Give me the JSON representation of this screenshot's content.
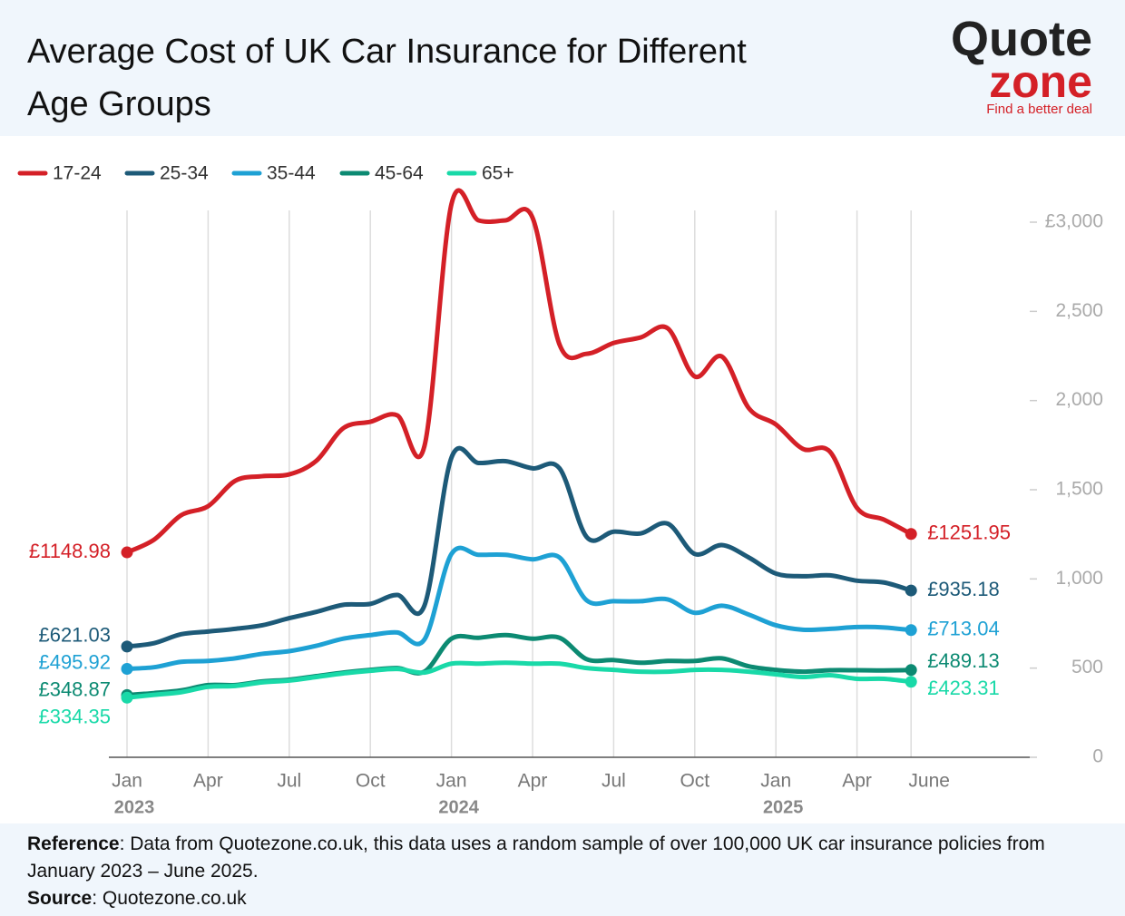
{
  "chart_data": {
    "type": "line",
    "title": "Average Cost of UK Car Insurance for Different Age Groups",
    "categories": [
      "Jan",
      null,
      null,
      "Apr",
      null,
      null,
      "Jul",
      null,
      null,
      "Oct",
      null,
      null,
      "Jan",
      null,
      null,
      "Apr",
      null,
      null,
      "Jul",
      null,
      null,
      "Oct",
      null,
      null,
      "Jan",
      null,
      null,
      "Apr",
      null,
      "June"
    ],
    "year_labels": [
      "2023",
      "2024",
      "2025"
    ],
    "ylim": [
      0,
      3000
    ],
    "yticks": [
      0,
      500,
      {
        "value": 1000,
        "label": "1,000"
      },
      {
        "value": 1500,
        "label": "1,500"
      },
      {
        "value": 2000,
        "label": "2,000"
      },
      {
        "value": 2500,
        "label": "2,500"
      },
      {
        "value": 3000,
        "label": "£3,000"
      }
    ],
    "grid": true,
    "series": [
      {
        "name": "17-24",
        "color": "#d42027",
        "values": [
          1148.98,
          1220,
          1357,
          1408,
          1550,
          1576,
          1586,
          1662,
          1845,
          1881,
          1917,
          1744,
          3101,
          3010,
          3010,
          3025,
          2313,
          2262,
          2323,
          2354,
          2405,
          2135,
          2247,
          1957,
          1866,
          1729,
          1713,
          1398,
          1332,
          1251.95
        ],
        "value_labels": [
          "£1148.98",
          null,
          null,
          null,
          null,
          null,
          null,
          null,
          null,
          null,
          null,
          null,
          null,
          null,
          null,
          null,
          null,
          null,
          null,
          null,
          null,
          null,
          null,
          null,
          null,
          null,
          null,
          null,
          null,
          "£1251.95"
        ]
      },
      {
        "name": "25-34",
        "color": "#1d5a78",
        "values": [
          621.03,
          640,
          690,
          705,
          720,
          740,
          780,
          815,
          855,
          860,
          910,
          850,
          1680,
          1650,
          1660,
          1620,
          1620,
          1235,
          1265,
          1255,
          1310,
          1140,
          1190,
          1120,
          1030,
          1015,
          1020,
          990,
          980,
          935.18
        ],
        "value_labels": [
          "£621.03",
          null,
          null,
          null,
          null,
          null,
          null,
          null,
          null,
          null,
          null,
          null,
          null,
          null,
          null,
          null,
          null,
          null,
          null,
          null,
          null,
          null,
          null,
          null,
          null,
          null,
          null,
          null,
          null,
          "£935.18"
        ]
      },
      {
        "name": "35-44",
        "color": "#1ea1d4",
        "values": [
          495.92,
          505,
          535,
          540,
          555,
          580,
          595,
          625,
          665,
          685,
          700,
          660,
          1140,
          1135,
          1135,
          1110,
          1120,
          880,
          875,
          875,
          885,
          810,
          850,
          800,
          740,
          715,
          720,
          730,
          728,
          713.04
        ],
        "value_labels": [
          "£495.92",
          null,
          null,
          null,
          null,
          null,
          null,
          null,
          null,
          null,
          null,
          null,
          null,
          null,
          null,
          null,
          null,
          null,
          null,
          null,
          null,
          null,
          null,
          null,
          null,
          null,
          null,
          null,
          null,
          "£713.04"
        ]
      },
      {
        "name": "45-64",
        "color": "#0c8a72",
        "values": [
          348.87,
          360,
          375,
          405,
          405,
          425,
          435,
          455,
          475,
          490,
          500,
          480,
          665,
          670,
          685,
          665,
          670,
          550,
          545,
          530,
          540,
          540,
          555,
          510,
          490,
          480,
          488,
          488,
          487,
          489.13
        ],
        "value_labels": [
          "£348.87",
          null,
          null,
          null,
          null,
          null,
          null,
          null,
          null,
          null,
          null,
          null,
          null,
          null,
          null,
          null,
          null,
          null,
          null,
          null,
          null,
          null,
          null,
          null,
          null,
          null,
          null,
          null,
          null,
          "£489.13"
        ]
      },
      {
        "name": "65+",
        "color": "#19d9a8",
        "values": [
          334.35,
          350,
          365,
          395,
          400,
          420,
          430,
          450,
          470,
          485,
          495,
          475,
          525,
          525,
          530,
          525,
          525,
          500,
          490,
          480,
          480,
          490,
          490,
          480,
          465,
          450,
          460,
          440,
          440,
          423.31
        ],
        "value_labels": [
          "£334.35",
          null,
          null,
          null,
          null,
          null,
          null,
          null,
          null,
          null,
          null,
          null,
          null,
          null,
          null,
          null,
          null,
          null,
          null,
          null,
          null,
          null,
          null,
          null,
          null,
          null,
          null,
          null,
          null,
          "£423.31"
        ]
      }
    ]
  },
  "logo": {
    "line1": "Quote",
    "line2": "zone",
    "tagline": "Find a better deal"
  },
  "footer": {
    "reference_label": "Reference",
    "reference_text": ": Data from Quotezone.co.uk, this data uses a random sample of over 100,000 UK car insurance policies from January 2023 – June 2025.",
    "source_label": "Source",
    "source_text": ": Quotezone.co.uk"
  }
}
